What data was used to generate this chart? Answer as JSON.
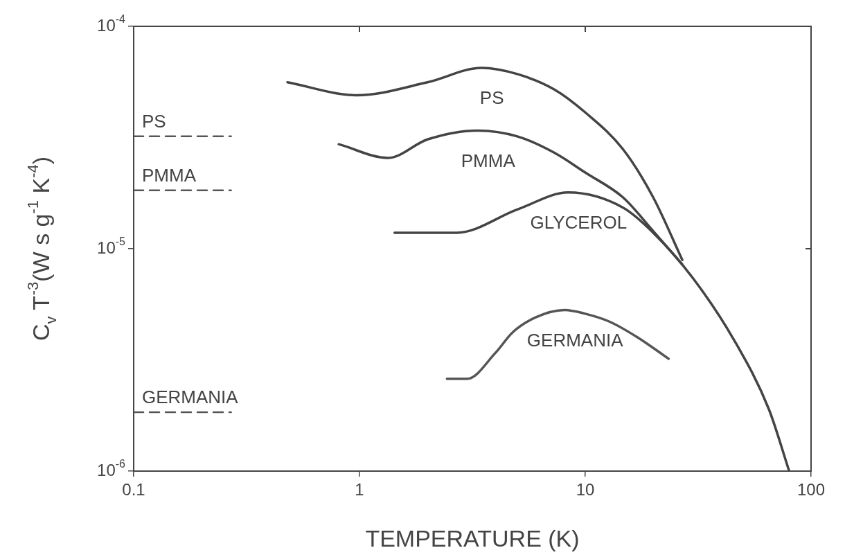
{
  "chart_data": {
    "type": "line",
    "xlabel": "TEMPERATURE (K)",
    "ylabel": "C$_{v}$ T$^{-3}$(W s g$^{-1}$ K$^{-4}$)",
    "log": "xy",
    "marker": "none",
    "legend": false,
    "grid": false,
    "xlim": [
      0.1,
      100
    ],
    "ylim": [
      1e-06,
      0.0001
    ],
    "xticks": [
      0.1,
      1,
      10,
      100
    ],
    "yticks": [
      {
        "value": 1e-06,
        "label": "10$^{-6}$"
      },
      {
        "value": 1e-05,
        "label": "10$^{-5}$"
      },
      {
        "value": 0.0001,
        "label": "10$^{-4}$"
      }
    ],
    "series": [
      {
        "name": "PS",
        "color": "#444444",
        "x": [
          0.48,
          0.97,
          2,
          3.47,
          5,
          7.3,
          10,
          14.7,
          20,
          26.9
        ],
        "values": [
          5.6e-05,
          4.9e-05,
          5.6e-05,
          6.5e-05,
          6.1e-05,
          5.2e-05,
          4.1e-05,
          2.8e-05,
          1.7e-05,
          8.9e-06
        ]
      },
      {
        "name": "PMMA",
        "color": "#444444",
        "x": [
          0.81,
          1.34,
          2,
          3.34,
          5,
          7.3,
          10,
          14.7,
          20,
          26.9
        ],
        "values": [
          2.95e-05,
          2.56e-05,
          3.1e-05,
          3.4e-05,
          3.2e-05,
          2.7e-05,
          2.2e-05,
          1.7e-05,
          1.2e-05,
          8.5e-06
        ]
      },
      {
        "name": "GLYCEROL",
        "color": "#444444",
        "x": [
          1.43,
          2.7,
          5,
          8.4,
          14.7,
          20,
          29.9,
          45.5,
          65,
          80
        ],
        "values": [
          1.18e-05,
          1.18e-05,
          1.5e-05,
          1.79e-05,
          1.53e-05,
          1.18e-05,
          7.4e-06,
          3.9e-06,
          1.9e-06,
          1e-06
        ]
      },
      {
        "name": "GERMANIA",
        "color": "#555555",
        "x": [
          2.44,
          3,
          4,
          4.76,
          6,
          8.1,
          10,
          12.8,
          17,
          23.4
        ],
        "values": [
          2.6e-06,
          2.6e-06,
          3.4e-06,
          4.2e-06,
          4.9e-06,
          5.3e-06,
          5.1e-06,
          4.7e-06,
          4e-06,
          3.2e-06
        ]
      },
      {
        "name": "PS",
        "color": "#555555",
        "line_style": "dashed",
        "x": [
          0.1,
          0.27
        ],
        "values": [
          3.2e-05,
          3.2e-05
        ]
      },
      {
        "name": "PMMA",
        "color": "#555555",
        "line_style": "dashed",
        "x": [
          0.1,
          0.27
        ],
        "values": [
          1.83e-05,
          1.83e-05
        ]
      },
      {
        "name": "GERMANIA",
        "color": "#555555",
        "line_style": "dashed",
        "x": [
          0.1,
          0.27
        ],
        "values": [
          1.84e-06,
          1.84e-06
        ]
      }
    ]
  }
}
